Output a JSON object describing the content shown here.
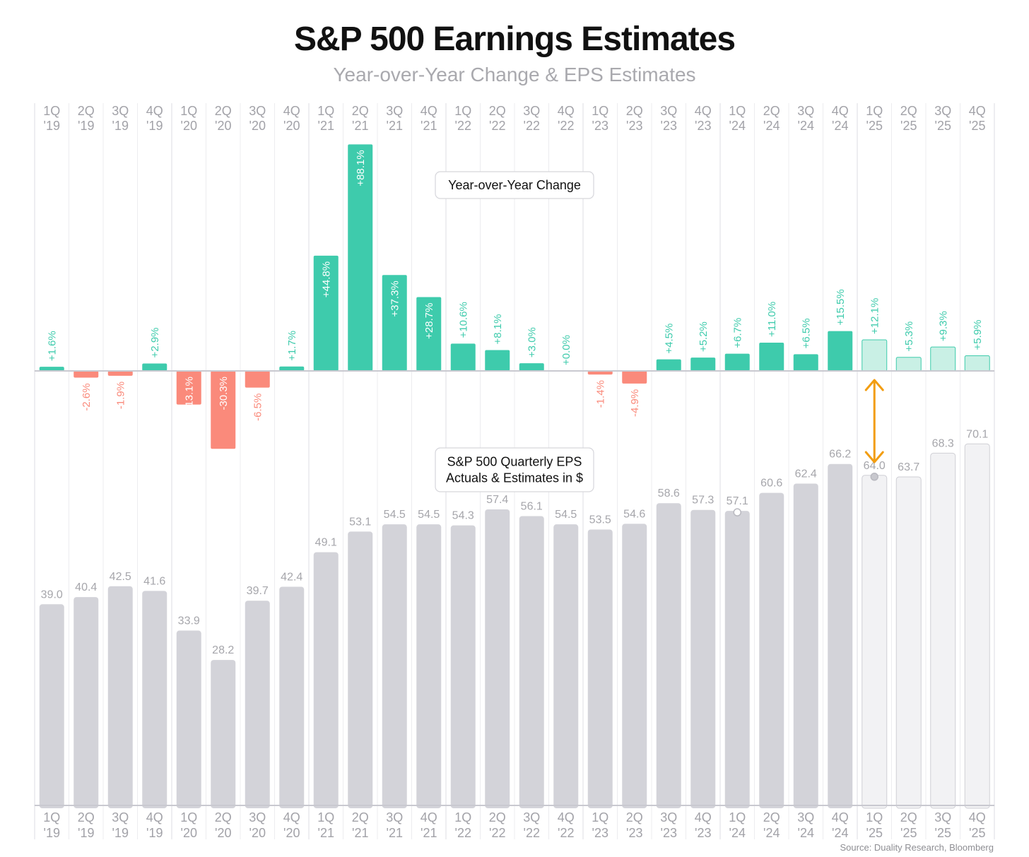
{
  "header": {
    "title": "S&P 500 Earnings Estimates",
    "subtitle": "Year-over-Year Change & EPS Estimates"
  },
  "source": "Source: Duality Research, Bloomberg",
  "colors": {
    "positive": "#3ecbac",
    "positive_estimate": "#c9f0e5",
    "negative": "#fa8a7b",
    "eps_bar": "#d3d3d9",
    "eps_estimate": "#f2f2f4",
    "arrow": "#f29d11"
  },
  "chart_data": [
    {
      "type": "bar",
      "name": "yoy",
      "annotation": "Year-over-Year Change",
      "categories": [
        "1Q '19",
        "2Q '19",
        "3Q '19",
        "4Q '19",
        "1Q '20",
        "2Q '20",
        "3Q '20",
        "4Q '20",
        "1Q '21",
        "2Q '21",
        "3Q '21",
        "4Q '21",
        "1Q '22",
        "2Q '22",
        "3Q '22",
        "4Q '22",
        "1Q '23",
        "2Q '23",
        "3Q '23",
        "4Q '23",
        "1Q '24",
        "2Q '24",
        "3Q '24",
        "4Q '24",
        "1Q '25",
        "2Q '25",
        "3Q '25",
        "4Q '25"
      ],
      "values": [
        1.6,
        -2.6,
        -1.9,
        2.9,
        -13.1,
        -30.3,
        -6.5,
        1.7,
        44.8,
        88.1,
        37.3,
        28.7,
        10.6,
        8.1,
        3.0,
        0.0,
        -1.4,
        -4.9,
        4.5,
        5.2,
        6.7,
        11.0,
        6.5,
        15.5,
        12.1,
        5.3,
        9.3,
        5.9
      ],
      "labels": [
        "+1.6%",
        "-2.6%",
        "-1.9%",
        "+2.9%",
        "-13.1%",
        "-30.3%",
        "-6.5%",
        "+1.7%",
        "+44.8%",
        "+88.1%",
        "+37.3%",
        "+28.7%",
        "+10.6%",
        "+8.1%",
        "+3.0%",
        "+0.0%",
        "-1.4%",
        "-4.9%",
        "+4.5%",
        "+5.2%",
        "+6.7%",
        "+11.0%",
        "+6.5%",
        "+15.5%",
        "+12.1%",
        "+5.3%",
        "+9.3%",
        "+5.9%"
      ],
      "estimate": [
        false,
        false,
        false,
        false,
        false,
        false,
        false,
        false,
        false,
        false,
        false,
        false,
        false,
        false,
        false,
        false,
        false,
        false,
        false,
        false,
        false,
        false,
        false,
        false,
        true,
        true,
        true,
        true
      ],
      "unit": "%"
    },
    {
      "type": "bar",
      "name": "eps",
      "annotation": [
        "S&P 500 Quarterly EPS",
        "Actuals & Estimates in $"
      ],
      "categories": [
        "1Q '19",
        "2Q '19",
        "3Q '19",
        "4Q '19",
        "1Q '20",
        "2Q '20",
        "3Q '20",
        "4Q '20",
        "1Q '21",
        "2Q '21",
        "3Q '21",
        "4Q '21",
        "1Q '22",
        "2Q '22",
        "3Q '22",
        "4Q '22",
        "1Q '23",
        "2Q '23",
        "3Q '23",
        "4Q '23",
        "1Q '24",
        "2Q '24",
        "3Q '24",
        "4Q '24",
        "1Q '25",
        "2Q '25",
        "3Q '25",
        "4Q '25"
      ],
      "values": [
        39.0,
        40.4,
        42.5,
        41.6,
        33.9,
        28.2,
        39.7,
        42.4,
        49.1,
        53.1,
        54.5,
        54.5,
        54.3,
        57.4,
        56.1,
        54.5,
        53.5,
        54.6,
        58.6,
        57.3,
        57.1,
        60.6,
        62.4,
        66.2,
        64.0,
        63.7,
        68.3,
        70.1
      ],
      "labels": [
        "39.0",
        "40.4",
        "42.5",
        "41.6",
        "33.9",
        "28.2",
        "39.7",
        "42.4",
        "49.1",
        "53.1",
        "54.5",
        "54.5",
        "54.3",
        "57.4",
        "56.1",
        "54.5",
        "53.5",
        "54.6",
        "58.6",
        "57.3",
        "57.1",
        "60.6",
        "62.4",
        "66.2",
        "64.0",
        "63.7",
        "68.3",
        "70.1"
      ],
      "estimate": [
        false,
        false,
        false,
        false,
        false,
        false,
        false,
        false,
        false,
        false,
        false,
        false,
        false,
        false,
        false,
        false,
        false,
        false,
        false,
        false,
        false,
        false,
        false,
        false,
        true,
        true,
        true,
        true
      ],
      "marker_dots": [
        "1Q '24",
        "1Q '25"
      ],
      "comparison_arrow": [
        "1Q '24",
        "1Q '25"
      ],
      "unit": "$"
    }
  ],
  "axis": {
    "quarters": [
      "1Q",
      "2Q",
      "3Q",
      "4Q",
      "1Q",
      "2Q",
      "3Q",
      "4Q",
      "1Q",
      "2Q",
      "3Q",
      "4Q",
      "1Q",
      "2Q",
      "3Q",
      "4Q",
      "1Q",
      "2Q",
      "3Q",
      "4Q",
      "1Q",
      "2Q",
      "3Q",
      "4Q",
      "1Q",
      "2Q",
      "3Q",
      "4Q"
    ],
    "years": [
      "'19",
      "'19",
      "'19",
      "'19",
      "'20",
      "'20",
      "'20",
      "'20",
      "'21",
      "'21",
      "'21",
      "'21",
      "'22",
      "'22",
      "'22",
      "'22",
      "'23",
      "'23",
      "'23",
      "'23",
      "'24",
      "'24",
      "'24",
      "'24",
      "'25",
      "'25",
      "'25",
      "'25"
    ]
  }
}
